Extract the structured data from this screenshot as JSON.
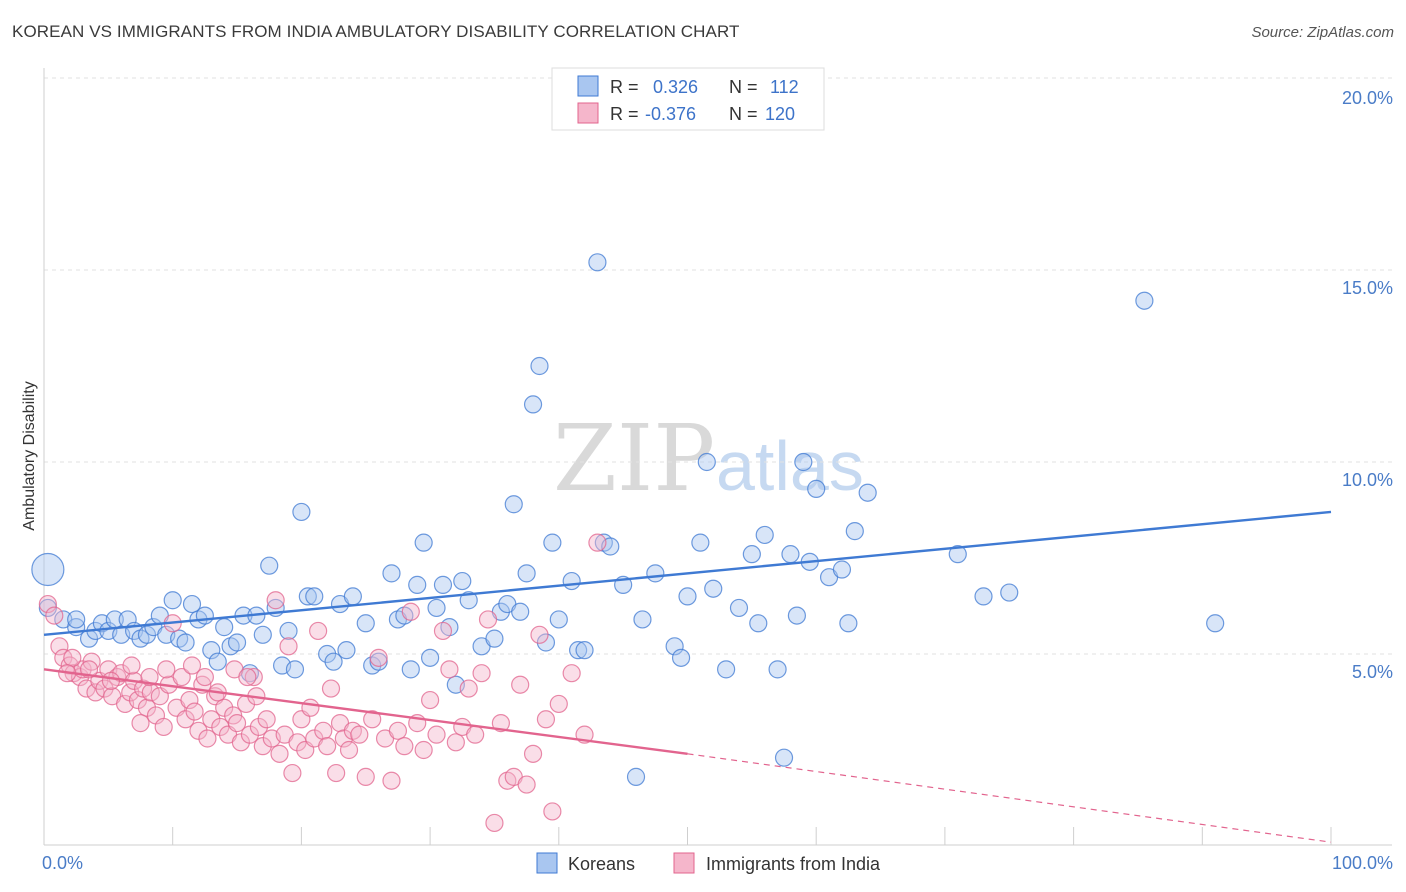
{
  "title": "KOREAN VS IMMIGRANTS FROM INDIA AMBULATORY DISABILITY CORRELATION CHART",
  "source": "Source: ZipAtlas.com",
  "watermark": {
    "zip": "ZIP",
    "atlas": "atlas"
  },
  "colors": {
    "korean": "#3f7ad3",
    "india": "#e2648e",
    "korean_fill": "#a9c6f0",
    "india_fill": "#f5b6cb",
    "tick": "#4a7cc7"
  },
  "legend_top": {
    "rows": [
      {
        "r_label": "R =",
        "r_value": "0.326",
        "n_label": "N =",
        "n_value": "112"
      },
      {
        "r_label": "R =",
        "r_value": "-0.376",
        "n_label": "N =",
        "n_value": "120"
      }
    ]
  },
  "legend_bottom": {
    "korean": "Koreans",
    "india": "Immigrants from India"
  },
  "chart_data": {
    "type": "scatter",
    "ylabel": "Ambulatory Disability",
    "xlabel": "",
    "x_tick_labels": [
      "0.0%",
      "100.0%"
    ],
    "y_tick_labels": [
      "5.0%",
      "10.0%",
      "15.0%",
      "20.0%"
    ],
    "xlim": [
      0,
      100
    ],
    "ylim": [
      0,
      20
    ],
    "series": [
      {
        "name": "Koreans",
        "color": "#3f7ad3",
        "trend": {
          "x": [
            0,
            100
          ],
          "y": [
            5.5,
            8.7
          ]
        },
        "points": [
          [
            0.3,
            7.2
          ],
          [
            0.3,
            6.2
          ],
          [
            1.5,
            5.9
          ],
          [
            2.5,
            5.7
          ],
          [
            2.5,
            5.9
          ],
          [
            3.5,
            5.4
          ],
          [
            4,
            5.6
          ],
          [
            4.5,
            5.8
          ],
          [
            5,
            5.6
          ],
          [
            5.5,
            5.9
          ],
          [
            6,
            5.5
          ],
          [
            6.5,
            5.9
          ],
          [
            7,
            5.6
          ],
          [
            7.5,
            5.4
          ],
          [
            8,
            5.5
          ],
          [
            8.5,
            5.7
          ],
          [
            9,
            6.0
          ],
          [
            9.5,
            5.5
          ],
          [
            10,
            6.4
          ],
          [
            10.5,
            5.4
          ],
          [
            11,
            5.3
          ],
          [
            11.5,
            6.3
          ],
          [
            12,
            5.9
          ],
          [
            12.5,
            6.0
          ],
          [
            13,
            5.1
          ],
          [
            13.5,
            4.8
          ],
          [
            14,
            5.7
          ],
          [
            14.5,
            5.2
          ],
          [
            15,
            5.3
          ],
          [
            15.5,
            6.0
          ],
          [
            16,
            4.5
          ],
          [
            16.5,
            6.0
          ],
          [
            17,
            5.5
          ],
          [
            17.5,
            7.3
          ],
          [
            18,
            6.2
          ],
          [
            18.5,
            4.7
          ],
          [
            19,
            5.6
          ],
          [
            19.5,
            4.6
          ],
          [
            20,
            8.7
          ],
          [
            20.5,
            6.5
          ],
          [
            21,
            6.5
          ],
          [
            22,
            5.0
          ],
          [
            22.5,
            4.8
          ],
          [
            23,
            6.3
          ],
          [
            23.5,
            5.1
          ],
          [
            24,
            6.5
          ],
          [
            25,
            5.8
          ],
          [
            25.5,
            4.7
          ],
          [
            26,
            4.8
          ],
          [
            27,
            7.1
          ],
          [
            27.5,
            5.9
          ],
          [
            28,
            6.0
          ],
          [
            28.5,
            4.6
          ],
          [
            29,
            6.8
          ],
          [
            29.5,
            7.9
          ],
          [
            30,
            4.9
          ],
          [
            30.5,
            6.2
          ],
          [
            31,
            6.8
          ],
          [
            31.5,
            5.7
          ],
          [
            32,
            4.2
          ],
          [
            32.5,
            6.9
          ],
          [
            33,
            6.4
          ],
          [
            34,
            5.2
          ],
          [
            35,
            5.4
          ],
          [
            35.5,
            6.1
          ],
          [
            36,
            6.3
          ],
          [
            36.5,
            8.9
          ],
          [
            37,
            6.1
          ],
          [
            37.5,
            7.1
          ],
          [
            38,
            11.5
          ],
          [
            38.5,
            12.5
          ],
          [
            39,
            5.3
          ],
          [
            39.5,
            7.9
          ],
          [
            40,
            5.9
          ],
          [
            41,
            6.9
          ],
          [
            41.5,
            5.1
          ],
          [
            42,
            5.1
          ],
          [
            43,
            15.2
          ],
          [
            43.5,
            7.9
          ],
          [
            44,
            7.8
          ],
          [
            45,
            6.8
          ],
          [
            46,
            1.8
          ],
          [
            46.5,
            5.9
          ],
          [
            47.5,
            7.1
          ],
          [
            49,
            5.2
          ],
          [
            49.5,
            4.9
          ],
          [
            50,
            6.5
          ],
          [
            51,
            7.9
          ],
          [
            51.5,
            10.0
          ],
          [
            52,
            6.7
          ],
          [
            53,
            4.6
          ],
          [
            54,
            6.2
          ],
          [
            55,
            7.6
          ],
          [
            55.5,
            5.8
          ],
          [
            56,
            8.1
          ],
          [
            57,
            4.6
          ],
          [
            57.5,
            2.3
          ],
          [
            58,
            7.6
          ],
          [
            58.5,
            6.0
          ],
          [
            59,
            10.0
          ],
          [
            59.5,
            7.4
          ],
          [
            60,
            9.3
          ],
          [
            61,
            7.0
          ],
          [
            62,
            7.2
          ],
          [
            62.5,
            5.8
          ],
          [
            63,
            8.2
          ],
          [
            64,
            9.2
          ],
          [
            71,
            7.6
          ],
          [
            73,
            6.5
          ],
          [
            75,
            6.6
          ],
          [
            85.5,
            14.2
          ],
          [
            91,
            5.8
          ]
        ]
      },
      {
        "name": "Immigrants from India",
        "color": "#e2648e",
        "trend": {
          "x": [
            0,
            50
          ],
          "y": [
            4.6,
            2.4
          ]
        },
        "trend_dashed": {
          "x": [
            50,
            100
          ],
          "y": [
            2.4,
            0.1
          ]
        },
        "points": [
          [
            0.3,
            6.3
          ],
          [
            0.8,
            6.0
          ],
          [
            1.2,
            5.2
          ],
          [
            1.5,
            4.9
          ],
          [
            2,
            4.7
          ],
          [
            2.3,
            4.5
          ],
          [
            2.8,
            4.4
          ],
          [
            3,
            4.6
          ],
          [
            3.3,
            4.1
          ],
          [
            3.7,
            4.8
          ],
          [
            4,
            4.0
          ],
          [
            4.3,
            4.3
          ],
          [
            4.7,
            4.1
          ],
          [
            5,
            4.6
          ],
          [
            5.3,
            3.9
          ],
          [
            5.7,
            4.4
          ],
          [
            6,
            4.5
          ],
          [
            6.3,
            3.7
          ],
          [
            6.7,
            4.0
          ],
          [
            7,
            4.3
          ],
          [
            7.3,
            3.8
          ],
          [
            7.7,
            4.1
          ],
          [
            8,
            3.6
          ],
          [
            8.3,
            4.0
          ],
          [
            8.7,
            3.4
          ],
          [
            9,
            3.9
          ],
          [
            9.3,
            3.1
          ],
          [
            9.7,
            4.2
          ],
          [
            10,
            5.8
          ],
          [
            10.3,
            3.6
          ],
          [
            10.7,
            4.4
          ],
          [
            11,
            3.3
          ],
          [
            11.3,
            3.8
          ],
          [
            11.7,
            3.5
          ],
          [
            12,
            3.0
          ],
          [
            12.3,
            4.2
          ],
          [
            12.7,
            2.8
          ],
          [
            13,
            3.3
          ],
          [
            13.3,
            3.9
          ],
          [
            13.7,
            3.1
          ],
          [
            14,
            3.6
          ],
          [
            14.3,
            2.9
          ],
          [
            14.7,
            3.4
          ],
          [
            15,
            3.2
          ],
          [
            15.3,
            2.7
          ],
          [
            15.7,
            3.7
          ],
          [
            16,
            2.9
          ],
          [
            16.3,
            4.4
          ],
          [
            16.7,
            3.1
          ],
          [
            17,
            2.6
          ],
          [
            17.3,
            3.3
          ],
          [
            17.7,
            2.8
          ],
          [
            18,
            6.4
          ],
          [
            18.3,
            2.4
          ],
          [
            18.7,
            2.9
          ],
          [
            19,
            5.2
          ],
          [
            19.3,
            1.9
          ],
          [
            19.7,
            2.7
          ],
          [
            20,
            3.3
          ],
          [
            20.3,
            2.5
          ],
          [
            20.7,
            3.6
          ],
          [
            21,
            2.8
          ],
          [
            21.3,
            5.6
          ],
          [
            21.7,
            3.0
          ],
          [
            22,
            2.6
          ],
          [
            22.3,
            4.1
          ],
          [
            22.7,
            1.9
          ],
          [
            23,
            3.2
          ],
          [
            23.3,
            2.8
          ],
          [
            23.7,
            2.5
          ],
          [
            24,
            3.0
          ],
          [
            24.5,
            2.9
          ],
          [
            25,
            1.8
          ],
          [
            25.5,
            3.3
          ],
          [
            26,
            4.9
          ],
          [
            26.5,
            2.8
          ],
          [
            27,
            1.7
          ],
          [
            27.5,
            3.0
          ],
          [
            28,
            2.6
          ],
          [
            28.5,
            6.1
          ],
          [
            29,
            3.2
          ],
          [
            29.5,
            2.5
          ],
          [
            30,
            3.8
          ],
          [
            30.5,
            2.9
          ],
          [
            31,
            5.6
          ],
          [
            31.5,
            4.6
          ],
          [
            32,
            2.7
          ],
          [
            32.5,
            3.1
          ],
          [
            33,
            4.1
          ],
          [
            33.5,
            2.9
          ],
          [
            34,
            4.5
          ],
          [
            34.5,
            5.9
          ],
          [
            35,
            0.6
          ],
          [
            35.5,
            3.2
          ],
          [
            36,
            1.7
          ],
          [
            36.5,
            1.8
          ],
          [
            37,
            4.2
          ],
          [
            37.5,
            1.6
          ],
          [
            38,
            2.4
          ],
          [
            38.5,
            5.5
          ],
          [
            39,
            3.3
          ],
          [
            39.5,
            0.9
          ],
          [
            40,
            3.7
          ],
          [
            41,
            4.5
          ],
          [
            42,
            2.9
          ],
          [
            43,
            7.9
          ],
          [
            11.5,
            4.7
          ],
          [
            12.5,
            4.4
          ],
          [
            14.8,
            4.6
          ],
          [
            16.5,
            3.9
          ],
          [
            9.5,
            4.6
          ],
          [
            8.2,
            4.4
          ],
          [
            6.8,
            4.7
          ],
          [
            5.2,
            4.3
          ],
          [
            3.5,
            4.6
          ],
          [
            2.2,
            4.9
          ],
          [
            1.8,
            4.5
          ],
          [
            7.5,
            3.2
          ],
          [
            13.5,
            4.0
          ],
          [
            15.8,
            4.4
          ]
        ]
      }
    ]
  }
}
